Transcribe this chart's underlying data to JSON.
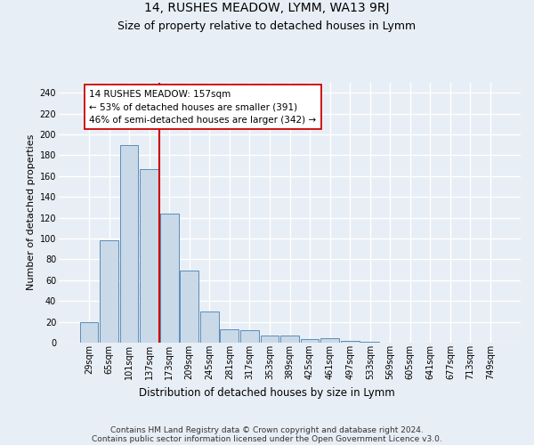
{
  "title": "14, RUSHES MEADOW, LYMM, WA13 9RJ",
  "subtitle": "Size of property relative to detached houses in Lymm",
  "xlabel": "Distribution of detached houses by size in Lymm",
  "ylabel": "Number of detached properties",
  "categories": [
    "29sqm",
    "65sqm",
    "101sqm",
    "137sqm",
    "173sqm",
    "209sqm",
    "245sqm",
    "281sqm",
    "317sqm",
    "353sqm",
    "389sqm",
    "425sqm",
    "461sqm",
    "497sqm",
    "533sqm",
    "569sqm",
    "605sqm",
    "641sqm",
    "677sqm",
    "713sqm",
    "749sqm"
  ],
  "values": [
    20,
    98,
    190,
    167,
    124,
    69,
    30,
    13,
    12,
    7,
    7,
    3,
    4,
    2,
    1,
    0,
    0,
    0,
    0,
    0,
    0
  ],
  "bar_color": "#c9d9e8",
  "bar_edge_color": "#5b8db8",
  "vline_x": 3.5,
  "vline_color": "#cc0000",
  "annotation_line1": "14 RUSHES MEADOW: 157sqm",
  "annotation_line2": "← 53% of detached houses are smaller (391)",
  "annotation_line3": "46% of semi-detached houses are larger (342) →",
  "annotation_box_facecolor": "#ffffff",
  "annotation_box_edgecolor": "#cc0000",
  "ylim": [
    0,
    250
  ],
  "yticks": [
    0,
    20,
    40,
    60,
    80,
    100,
    120,
    140,
    160,
    180,
    200,
    220,
    240
  ],
  "background_color": "#e8eef5",
  "grid_color": "#ffffff",
  "footer_line1": "Contains HM Land Registry data © Crown copyright and database right 2024.",
  "footer_line2": "Contains public sector information licensed under the Open Government Licence v3.0.",
  "title_fontsize": 10,
  "subtitle_fontsize": 9,
  "xlabel_fontsize": 8.5,
  "ylabel_fontsize": 8,
  "tick_fontsize": 7,
  "annotation_fontsize": 7.5,
  "footer_fontsize": 6.5
}
